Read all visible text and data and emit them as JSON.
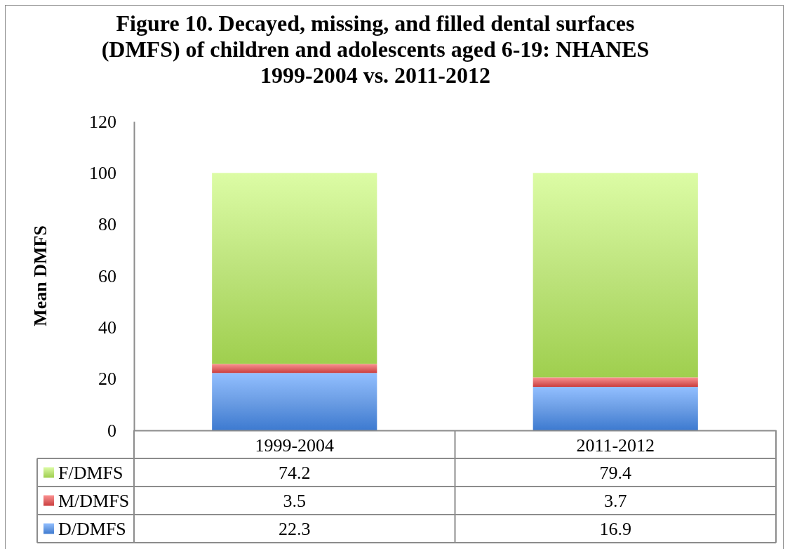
{
  "chart_data": {
    "type": "bar",
    "title": "Figure 10. Decayed, missing, and filled dental surfaces (DMFS) of children and adolescents aged 6-19: NHANES 1999-2004 vs. 2011-2012",
    "ylabel": "Mean DMFS",
    "categories": [
      "1999-2004",
      "2011-2012"
    ],
    "series": [
      {
        "name": "D/DMFS",
        "color": "#6b9de4",
        "values": [
          22.3,
          16.9
        ]
      },
      {
        "name": "M/DMFS",
        "color": "#e06a6a",
        "values": [
          3.5,
          3.7
        ]
      },
      {
        "name": "F/DMFS",
        "color": "#bde37c",
        "values": [
          74.2,
          79.4
        ]
      }
    ],
    "stacked": true,
    "ylim": [
      0,
      120
    ],
    "yticks": [
      0,
      20,
      40,
      60,
      80,
      100,
      120
    ],
    "legend": "bottom",
    "data_labels": true
  }
}
